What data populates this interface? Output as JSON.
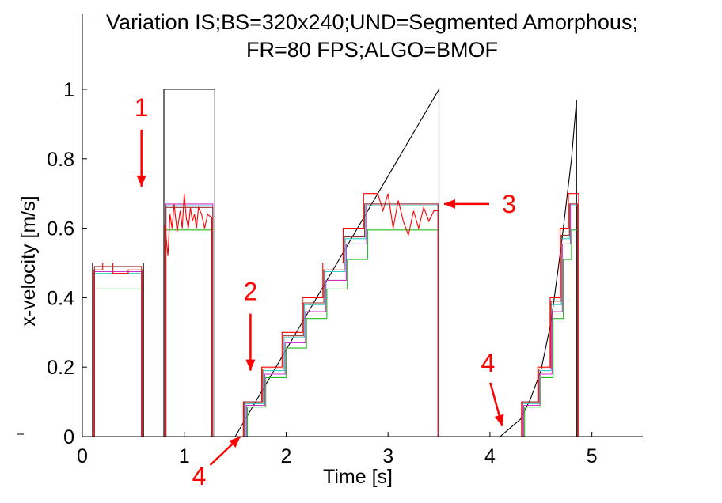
{
  "chart_data": {
    "type": "line",
    "title": "Variation IS;BS=320x240;UND=Segmented Amorphous;",
    "subtitle": "FR=80 FPS;ALGO=BMOF",
    "xlabel": "Time [s]",
    "ylabel": "x-velocity [m/s]",
    "xlim": [
      0,
      5.5
    ],
    "ylim": [
      0,
      1.0
    ],
    "xticks": [
      0,
      1,
      2,
      3,
      4,
      5
    ],
    "xtick_labels": [
      "0",
      "1",
      "2",
      "3",
      "4",
      "5"
    ],
    "yticks": [
      0,
      0.2,
      0.4,
      0.6,
      0.8,
      1
    ],
    "ytick_labels": [
      "0",
      "0.2",
      "0.4",
      "0.6",
      "0.8",
      "1"
    ],
    "grid": false,
    "colors": {
      "ground_truth": "#000000",
      "green": "#22bb22",
      "cyan": "#33cccc",
      "magenta": "#cc33cc",
      "red": "#ff0000",
      "darkred": "#993333",
      "annotation": "#ff0000"
    },
    "series": [
      {
        "key": "ground_truth",
        "x": [
          0,
          0.1,
          0.1,
          0.6,
          0.6,
          0.8,
          0.8,
          1.3,
          1.3,
          1.5,
          3.5,
          3.5,
          4.1,
          4.3,
          4.4,
          4.5,
          4.6,
          4.7,
          4.8,
          4.85,
          4.85,
          5.5
        ],
        "y": [
          0,
          0,
          0.5,
          0.5,
          0,
          0,
          1.0,
          1.0,
          0,
          0,
          1.0,
          0,
          0,
          0.05,
          0.11,
          0.19,
          0.33,
          0.55,
          0.8,
          0.97,
          0,
          0
        ]
      },
      {
        "key": "green",
        "x": [
          0,
          0.12,
          0.12,
          0.58,
          0.58,
          0.82,
          0.82,
          1.28,
          1.28,
          1.62,
          1.62,
          1.8,
          1.8,
          2.0,
          2.0,
          2.2,
          2.2,
          2.4,
          2.4,
          2.6,
          2.6,
          2.8,
          2.8,
          3.0,
          3.0,
          3.49,
          3.49,
          4.34,
          4.34,
          4.5,
          4.5,
          4.62,
          4.62,
          4.72,
          4.72,
          4.8,
          4.8,
          4.86,
          4.86,
          5.5
        ],
        "y": [
          0,
          0,
          0.425,
          0.425,
          0,
          0,
          0.595,
          0.595,
          0,
          0,
          0.085,
          0.085,
          0.17,
          0.17,
          0.255,
          0.255,
          0.34,
          0.34,
          0.425,
          0.425,
          0.51,
          0.51,
          0.595,
          0.595,
          0.595,
          0.595,
          0,
          0,
          0.085,
          0.085,
          0.17,
          0.17,
          0.34,
          0.34,
          0.51,
          0.51,
          0.595,
          0.595,
          0,
          0
        ]
      },
      {
        "key": "cyan",
        "x": [
          0,
          0.12,
          0.12,
          0.58,
          0.58,
          0.82,
          0.82,
          1.28,
          1.28,
          1.6,
          1.6,
          1.78,
          1.78,
          1.98,
          1.98,
          2.18,
          2.18,
          2.38,
          2.38,
          2.58,
          2.58,
          2.78,
          2.78,
          2.98,
          2.98,
          3.49,
          3.49,
          4.32,
          4.32,
          4.48,
          4.48,
          4.6,
          4.6,
          4.7,
          4.7,
          4.78,
          4.78,
          4.86,
          4.86,
          5.5
        ],
        "y": [
          0,
          0,
          0.47,
          0.47,
          0,
          0,
          0.665,
          0.665,
          0,
          0,
          0.095,
          0.095,
          0.19,
          0.19,
          0.285,
          0.285,
          0.38,
          0.38,
          0.475,
          0.475,
          0.57,
          0.57,
          0.665,
          0.665,
          0.665,
          0.665,
          0,
          0,
          0.095,
          0.095,
          0.19,
          0.19,
          0.38,
          0.38,
          0.57,
          0.57,
          0.665,
          0.665,
          0,
          0
        ]
      },
      {
        "key": "magenta",
        "x": [
          0,
          0.12,
          0.12,
          0.58,
          0.58,
          0.82,
          0.82,
          1.28,
          1.28,
          1.61,
          1.61,
          1.79,
          1.79,
          1.99,
          1.99,
          2.19,
          2.19,
          2.39,
          2.39,
          2.59,
          2.59,
          2.79,
          2.79,
          2.99,
          2.99,
          3.49,
          3.49,
          4.33,
          4.33,
          4.49,
          4.49,
          4.61,
          4.61,
          4.71,
          4.71,
          4.79,
          4.79,
          4.86,
          4.86,
          5.5
        ],
        "y": [
          0,
          0,
          0.475,
          0.475,
          0,
          0,
          0.67,
          0.67,
          0,
          0,
          0.09,
          0.09,
          0.18,
          0.18,
          0.27,
          0.27,
          0.36,
          0.36,
          0.45,
          0.45,
          0.555,
          0.555,
          0.67,
          0.67,
          0.67,
          0.67,
          0,
          0,
          0.09,
          0.09,
          0.18,
          0.18,
          0.36,
          0.36,
          0.555,
          0.555,
          0.67,
          0.67,
          0,
          0
        ]
      },
      {
        "key": "red",
        "x": [
          0,
          0.11,
          0.11,
          0.2,
          0.2,
          0.3,
          0.3,
          0.45,
          0.45,
          0.59,
          0.59,
          0.81,
          0.81,
          0.84,
          0.86,
          0.88,
          0.9,
          0.93,
          0.96,
          0.98,
          1.0,
          1.02,
          1.04,
          1.06,
          1.08,
          1.1,
          1.12,
          1.14,
          1.17,
          1.2,
          1.23,
          1.27,
          1.27,
          1.58,
          1.58,
          1.76,
          1.76,
          1.96,
          1.96,
          2.16,
          2.16,
          2.36,
          2.36,
          2.56,
          2.56,
          2.76,
          2.76,
          2.9,
          2.95,
          3.0,
          3.05,
          3.1,
          3.15,
          3.2,
          3.25,
          3.3,
          3.35,
          3.4,
          3.45,
          3.49,
          3.49,
          4.31,
          4.31,
          4.47,
          4.47,
          4.59,
          4.59,
          4.69,
          4.69,
          4.77,
          4.77,
          4.87,
          4.87,
          5.5
        ],
        "y": [
          0,
          0,
          0.48,
          0.48,
          0.5,
          0.5,
          0.47,
          0.47,
          0.48,
          0.48,
          0,
          0,
          0.61,
          0.52,
          0.64,
          0.6,
          0.67,
          0.59,
          0.65,
          0.6,
          0.7,
          0.63,
          0.6,
          0.66,
          0.62,
          0.64,
          0.6,
          0.66,
          0.64,
          0.6,
          0.64,
          0.63,
          0,
          0,
          0.1,
          0.1,
          0.2,
          0.2,
          0.3,
          0.3,
          0.4,
          0.4,
          0.5,
          0.5,
          0.6,
          0.6,
          0.7,
          0.7,
          0.65,
          0.7,
          0.6,
          0.68,
          0.62,
          0.58,
          0.65,
          0.6,
          0.66,
          0.62,
          0.65,
          0.65,
          0,
          0,
          0.1,
          0.1,
          0.2,
          0.2,
          0.4,
          0.4,
          0.6,
          0.6,
          0.7,
          0.7,
          0,
          0
        ]
      },
      {
        "key": "darkred",
        "x": [
          0,
          0.12,
          0.12,
          0.58,
          0.58,
          0.82,
          0.82,
          1.28,
          1.28,
          1.59,
          1.59,
          1.77,
          1.77,
          1.97,
          1.97,
          2.17,
          2.17,
          2.37,
          2.37,
          2.57,
          2.57,
          2.77,
          2.77,
          2.97,
          2.97,
          3.49,
          3.49,
          4.32,
          4.32,
          4.48,
          4.48,
          4.6,
          4.6,
          4.7,
          4.7,
          4.78,
          4.78,
          4.86,
          4.86,
          5.5
        ],
        "y": [
          0,
          0,
          0.49,
          0.49,
          0,
          0,
          0.66,
          0.66,
          0,
          0,
          0.1,
          0.1,
          0.195,
          0.195,
          0.29,
          0.29,
          0.385,
          0.385,
          0.48,
          0.48,
          0.575,
          0.575,
          0.67,
          0.67,
          0.67,
          0.67,
          0,
          0,
          0.1,
          0.1,
          0.195,
          0.195,
          0.39,
          0.39,
          0.58,
          0.58,
          0.67,
          0.67,
          0,
          0
        ]
      }
    ],
    "annotations": [
      {
        "text": "1",
        "x": 0.58,
        "y": 0.72,
        "text_dx": 0,
        "text_dy": -100,
        "arrow": "down"
      },
      {
        "text": "2",
        "x": 1.65,
        "y": 0.19,
        "text_dx": 0,
        "text_dy": -100,
        "arrow": "down"
      },
      {
        "text": "3",
        "x": 3.55,
        "y": 0.67,
        "text_dx": 82,
        "text_dy": 0,
        "arrow": "left"
      },
      {
        "text": "4",
        "x": 1.55,
        "y": 0.0,
        "text_dx": -52,
        "text_dy": 50,
        "arrow": "up-right"
      },
      {
        "text": "4",
        "x": 4.12,
        "y": 0.03,
        "text_dx": -18,
        "text_dy": -80,
        "arrow": "down-right"
      }
    ]
  }
}
